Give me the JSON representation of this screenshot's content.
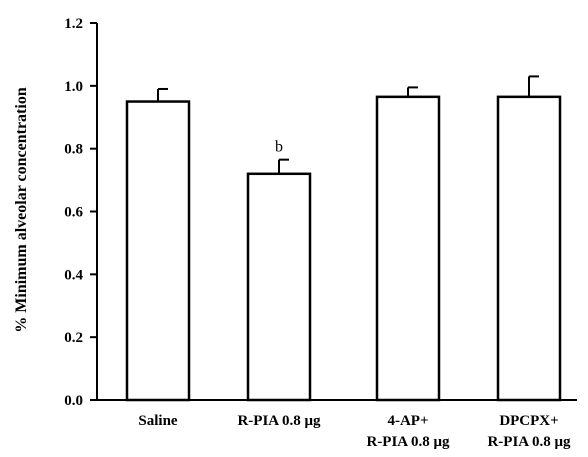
{
  "chart_data": {
    "type": "bar",
    "title": "",
    "xlabel": "",
    "ylabel": "% Minimum alveolar concentration",
    "ylim": [
      0,
      1.2
    ],
    "yticks": [
      "0.0",
      "0.2",
      "0.4",
      "0.6",
      "0.8",
      "1.0",
      "1.2"
    ],
    "categories": [
      {
        "line1": "Saline",
        "line2": ""
      },
      {
        "line1": "R-PIA 0.8 μg",
        "line2": ""
      },
      {
        "line1": "4-AP+",
        "line2": "R-PIA 0.8 μg"
      },
      {
        "line1": "DPCPX+",
        "line2": "R-PIA 0.8 μg"
      }
    ],
    "values": [
      0.95,
      0.72,
      0.965,
      0.965
    ],
    "errors": [
      0.04,
      0.045,
      0.03,
      0.065
    ],
    "annotations": [
      "",
      "b",
      "",
      ""
    ],
    "colors": {
      "bar_fill": "#ffffff",
      "bar_stroke": "#000000"
    }
  }
}
